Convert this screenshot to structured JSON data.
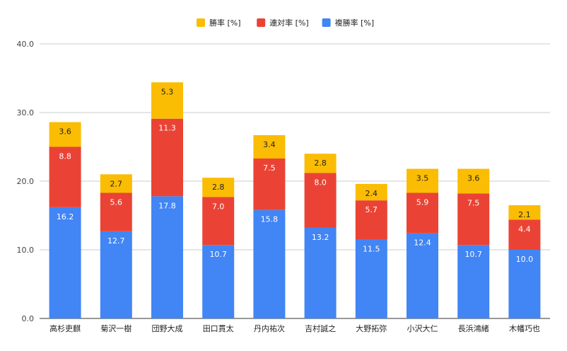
{
  "chart_data": {
    "type": "bar",
    "stacked": true,
    "categories": [
      "高杉吏麒",
      "菊沢一樹",
      "団野大成",
      "田口貫太",
      "丹内祐次",
      "吉村誠之",
      "大野拓弥",
      "小沢大仁",
      "長浜鴻緒",
      "木幡巧也"
    ],
    "series": [
      {
        "name": "複勝率 [%]",
        "color": "#4285F4",
        "label_color": "#ffffff",
        "values": [
          16.2,
          12.7,
          17.8,
          10.7,
          15.8,
          13.2,
          11.5,
          12.4,
          10.7,
          10.0
        ]
      },
      {
        "name": "連対率 [%]",
        "color": "#EA4335",
        "label_color": "#ffffff",
        "values": [
          8.8,
          5.6,
          11.3,
          7.0,
          7.5,
          8.0,
          5.7,
          5.9,
          7.5,
          4.4
        ]
      },
      {
        "name": "勝率 [%]",
        "color": "#FBBC04",
        "label_color": "#222222",
        "values": [
          3.6,
          2.7,
          5.3,
          2.8,
          3.4,
          2.8,
          2.4,
          3.5,
          3.6,
          2.1
        ]
      }
    ],
    "ylim": [
      0,
      40
    ],
    "yticks": [
      "0.0",
      "10.0",
      "20.0",
      "30.0",
      "40.0"
    ],
    "grid": true,
    "legend_position": "top",
    "legend_order": [
      "勝率 [%]",
      "連対率 [%]",
      "複勝率 [%]"
    ]
  }
}
